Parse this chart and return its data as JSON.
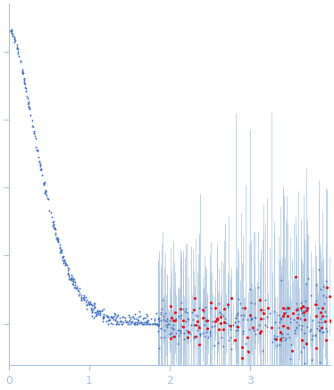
{
  "title": "",
  "xlabel": "",
  "ylabel": "",
  "xlim": [
    0,
    4.0
  ],
  "bg_color": "#ffffff",
  "point_color_blue": "#4472C4",
  "point_color_red": "#EE1111",
  "errorbar_color": "#aac4e0",
  "axis_color": "#aac4e0",
  "tick_color": "#aac4e0",
  "label_color": "#aac4e0",
  "q_max": 4.0,
  "I0": 0.85,
  "point_size_blue": 2,
  "point_size_red": 5,
  "xticks": [
    0,
    1,
    2,
    3
  ],
  "yticks_count": 5
}
